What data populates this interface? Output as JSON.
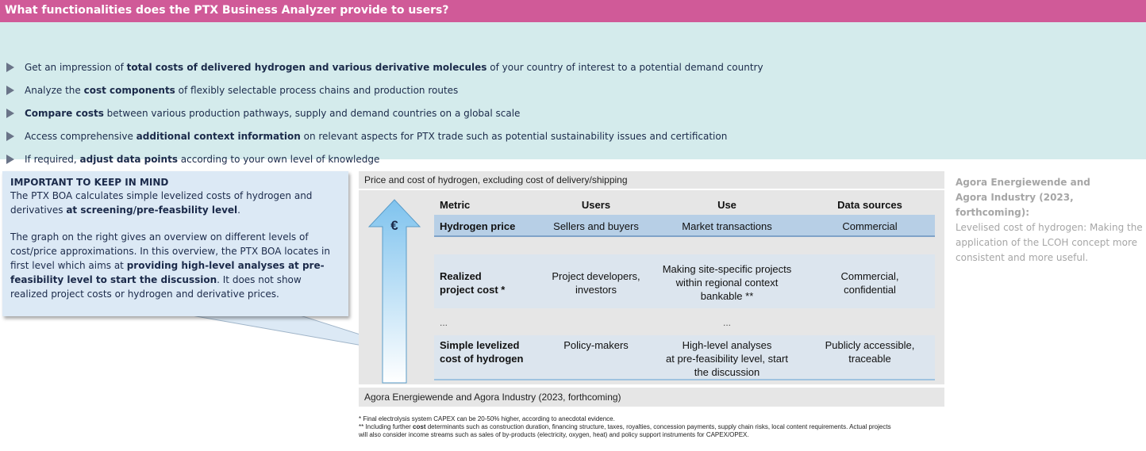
{
  "header": {
    "title": "What functionalities does the PTX Business Analyzer provide to users?"
  },
  "colors": {
    "header_bg": "#d05a98",
    "bullets_bg": "#d4ebec",
    "callout_bg": "#dce9f5",
    "arrow_fill": "#9fd1f0",
    "row_highlight": "#b7cfe6"
  },
  "bullets": [
    {
      "pre": "Get an impression of ",
      "bold": "total costs of delivered hydrogen and various derivative molecules",
      "post": " of your country of interest to a potential demand country"
    },
    {
      "pre": "Analyze the ",
      "bold": "cost components",
      "post": " of flexibly selectable process chains and production routes"
    },
    {
      "pre": "",
      "bold": "Compare costs",
      "post": " between various production pathways, supply and demand countries on a global scale"
    },
    {
      "pre": "Access comprehensive ",
      "bold": "additional context information",
      "post": " on relevant aspects for PTX trade such as potential sustainability issues and certification"
    },
    {
      "pre": "If required, ",
      "bold": "adjust data points",
      "post": " according to your own level of knowledge"
    }
  ],
  "callout": {
    "title": "IMPORTANT TO KEEP IN MIND",
    "p1_pre": "The PTX BOA calculates simple levelized costs of hydrogen and derivatives ",
    "p1_bold": "at screening/pre-feasbility level",
    "p1_post": ".",
    "p2_pre": "The graph on the right gives an overview on different levels of cost/price approximations. In this overview, the PTX BOA locates in first level which aims at ",
    "p2_bold": "providing high-level analyses at pre-feasibility level to start the discussion",
    "p2_post": ". It does not show realized project costs or hydrogen and derivative prices."
  },
  "panel": {
    "title": "Price and cost of hydrogen, excluding cost of delivery/shipping",
    "source": "Agora Energiewende and Agora Industry (2023, forthcoming)",
    "currency_symbol": "€",
    "columns": [
      "Metric",
      "Users",
      "Use",
      "Data sources"
    ],
    "rows": [
      {
        "metric": "Hydrogen price",
        "users": "Sellers and buyers",
        "use": "Market transactions",
        "sources": "Commercial"
      },
      {
        "metric_l1": "Realized",
        "metric_l2": "project cost *",
        "users_l1": "Project developers,",
        "users_l2": "investors",
        "use_l1": "Making site-specific projects",
        "use_l2": "within regional context",
        "use_l3": "bankable **",
        "sources_l1": "Commercial,",
        "sources_l2": "confidential"
      },
      {
        "metric_l1": "Simple levelized",
        "metric_l2": "cost of hydrogen",
        "users": "Policy-makers",
        "use_l1": "High-level analyses",
        "use_l2": "at pre-feasibility level, start",
        "use_l3": "the discussion",
        "sources_l1": "Publicly accessible,",
        "sources_l2": "traceable"
      }
    ],
    "ellipsis": "..."
  },
  "side_note": {
    "title_l1": "Agora Energiewende and",
    "title_l2": "Agora Industry (2023, forthcoming):",
    "body": "Levelised cost of hydrogen: Making the application of the LCOH concept more consistent and more useful."
  },
  "footnotes": {
    "f1": "*   Final electrolysis system CAPEX can be 20-50% higher, according to anecdotal evidence.",
    "f2_pre": "** Including further ",
    "f2_bold": "cost",
    "f2_post": " determinants such as construction duration, financing structure, taxes, royalties, concession payments, supply chain risks, local content requirements. Actual projects",
    "f3": "will also consider income streams such as sales of by-products (electricity, oxygen, heat) and policy support instruments for CAPEX/OPEX."
  }
}
